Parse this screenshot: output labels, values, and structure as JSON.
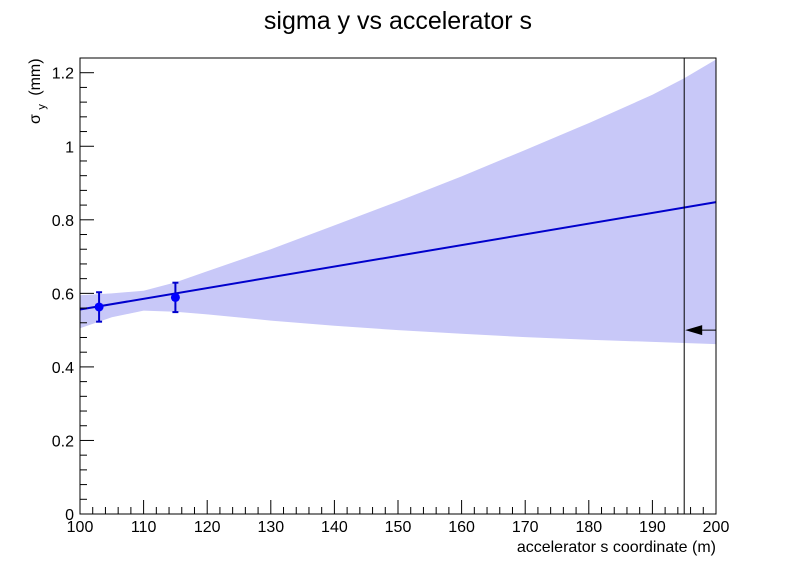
{
  "chart_data": {
    "type": "line",
    "title": "sigma y vs accelerator s",
    "xlabel": "accelerator s coordinate (m)",
    "ylabel": "σ",
    "ylabel_subscript": "y",
    "ylabel_unit": "(mm)",
    "xlim": [
      100,
      200
    ],
    "ylim": [
      0,
      1.24
    ],
    "x_ticks": [
      "100",
      "110",
      "120",
      "130",
      "140",
      "150",
      "160",
      "170",
      "180",
      "190",
      "200"
    ],
    "y_ticks": [
      "0",
      "0.2",
      "0.4",
      "0.6",
      "0.8",
      "1",
      "1.2"
    ],
    "grid": false,
    "colors": {
      "band": "#c8c8f8",
      "line": "#0000cc",
      "points": "#0000ff",
      "frame": "#000000"
    },
    "series": [
      {
        "kind": "fit-line",
        "x": [
          100,
          200
        ],
        "y": [
          0.556,
          0.848
        ]
      }
    ],
    "band": {
      "x": [
        100,
        105,
        110,
        115,
        120,
        130,
        140,
        150,
        160,
        170,
        180,
        190,
        195,
        200
      ],
      "lower": [
        0.505,
        0.535,
        0.553,
        0.55,
        0.543,
        0.526,
        0.512,
        0.5,
        0.49,
        0.481,
        0.474,
        0.468,
        0.465,
        0.462
      ],
      "upper": [
        0.595,
        0.6,
        0.607,
        0.63,
        0.66,
        0.72,
        0.785,
        0.85,
        0.918,
        0.99,
        1.063,
        1.14,
        1.185,
        1.236
      ]
    },
    "points": [
      {
        "x": 103,
        "y": 0.563,
        "err": 0.04
      },
      {
        "x": 115,
        "y": 0.589,
        "err": 0.04
      }
    ],
    "marker_line": {
      "x": 195
    },
    "arrow": {
      "y": 0.5
    }
  }
}
